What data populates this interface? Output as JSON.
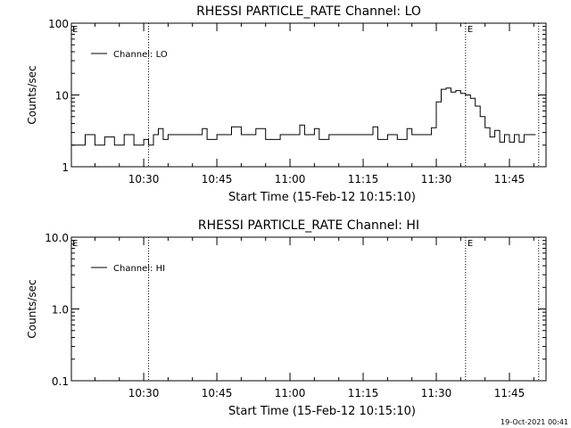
{
  "footer_stamp": "19-Oct-2021 00:41",
  "chart_data": [
    {
      "type": "line",
      "title": "RHESSI PARTICLE_RATE Channel: LO",
      "xlabel": "Start Time (15-Feb-12 10:15:10)",
      "ylabel": "Counts/sec",
      "yscale": "log",
      "ylim": [
        1,
        100
      ],
      "xlim": [
        "10:15:10",
        "11:52:30"
      ],
      "xticks": [
        "10:30",
        "10:45",
        "11:00",
        "11:15",
        "11:30",
        "11:45"
      ],
      "yticks": [
        "1",
        "10",
        "100"
      ],
      "legend": "top-left",
      "grid": false,
      "markers": [
        {
          "time": "10:31",
          "label": "E",
          "label_position": "top-left"
        },
        {
          "time": "11:36",
          "label": "E",
          "label_position": "top"
        },
        {
          "time": "11:51",
          "label": "",
          "label_position": "none"
        }
      ],
      "series": [
        {
          "name": "Channel: LO",
          "color": "#000000",
          "points": [
            [
              "10:15:10",
              2
            ],
            [
              "10:18",
              2.8
            ],
            [
              "10:20",
              2
            ],
            [
              "10:22",
              2.6
            ],
            [
              "10:24",
              2
            ],
            [
              "10:26",
              2.8
            ],
            [
              "10:28",
              2
            ],
            [
              "10:30",
              2.4
            ],
            [
              "10:31",
              2
            ],
            [
              "10:32",
              2.8
            ],
            [
              "10:33",
              3.4
            ],
            [
              "10:34",
              2.4
            ],
            [
              "10:35",
              2.8
            ],
            [
              "10:40",
              2.8
            ],
            [
              "10:42",
              3.4
            ],
            [
              "10:43",
              2.4
            ],
            [
              "10:45",
              2.8
            ],
            [
              "10:48",
              3.6
            ],
            [
              "10:50",
              2.8
            ],
            [
              "10:53",
              3.4
            ],
            [
              "10:55",
              2.4
            ],
            [
              "10:58",
              2.8
            ],
            [
              "11:00",
              2.8
            ],
            [
              "11:02",
              3.8
            ],
            [
              "11:03",
              2.8
            ],
            [
              "11:05",
              3.4
            ],
            [
              "11:06",
              2.4
            ],
            [
              "11:08",
              2.8
            ],
            [
              "11:15",
              2.8
            ],
            [
              "11:17",
              3.6
            ],
            [
              "11:18",
              2.4
            ],
            [
              "11:20",
              2.8
            ],
            [
              "11:22",
              2.4
            ],
            [
              "11:24",
              3.4
            ],
            [
              "11:25",
              2.8
            ],
            [
              "11:28",
              2.8
            ],
            [
              "11:29",
              3.5
            ],
            [
              "11:30",
              8
            ],
            [
              "11:31",
              12
            ],
            [
              "11:32",
              12.5
            ],
            [
              "11:33",
              11
            ],
            [
              "11:34",
              11.5
            ],
            [
              "11:35",
              10.5
            ],
            [
              "11:36",
              10
            ],
            [
              "11:37",
              9
            ],
            [
              "11:38",
              7
            ],
            [
              "11:39",
              5
            ],
            [
              "11:40",
              3.5
            ],
            [
              "11:41",
              2.6
            ],
            [
              "11:42",
              3.2
            ],
            [
              "11:43",
              2.2
            ],
            [
              "11:44",
              2.8
            ],
            [
              "11:45",
              2.2
            ],
            [
              "11:46",
              2.8
            ],
            [
              "11:47",
              2.2
            ],
            [
              "11:48",
              2.8
            ],
            [
              "11:50",
              2.8
            ]
          ]
        }
      ]
    },
    {
      "type": "line",
      "title": "RHESSI PARTICLE_RATE Channel: HI",
      "xlabel": "Start Time (15-Feb-12 10:15:10)",
      "ylabel": "Counts/sec",
      "yscale": "log",
      "ylim": [
        0.1,
        10
      ],
      "xlim": [
        "10:15:10",
        "11:52:30"
      ],
      "xticks": [
        "10:30",
        "10:45",
        "11:00",
        "11:15",
        "11:30",
        "11:45"
      ],
      "yticks": [
        "0.1",
        "1.0",
        "10.0"
      ],
      "legend": "top-left",
      "grid": false,
      "markers": [
        {
          "time": "10:31",
          "label": "E",
          "label_position": "top-left"
        },
        {
          "time": "11:36",
          "label": "E",
          "label_position": "top"
        },
        {
          "time": "11:51",
          "label": "",
          "label_position": "none"
        }
      ],
      "series": [
        {
          "name": "Channel: HI",
          "color": "#000000",
          "points": []
        }
      ]
    }
  ]
}
